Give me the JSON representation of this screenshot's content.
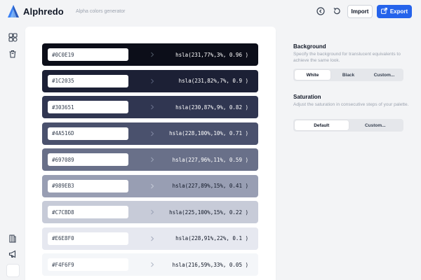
{
  "header": {
    "brand": "Alphredo",
    "tagline": "Alpha colors generator",
    "import_label": "Import",
    "export_label": "Export",
    "accent": "#2563eb"
  },
  "icons": {
    "logo": "alphredo-logo-icon",
    "history": "history-icon",
    "reset": "reset-icon",
    "export": "export-icon",
    "palettes": "palettes-icon",
    "trash": "trash-icon",
    "docs": "docs-icon",
    "announce": "megaphone-icon"
  },
  "swatches": [
    {
      "hex": "#0C0E19",
      "hsla": "hsla(231,77%,3%, 0.96 )",
      "bg": "#0C0E19",
      "text": "#ffffff",
      "chevron": "#4b5563"
    },
    {
      "hex": "#1C2035",
      "hsla": "hsla(231,82%,7%, 0.9 )",
      "bg": "#1C2035",
      "text": "#ffffff",
      "chevron": "#525a74"
    },
    {
      "hex": "#303651",
      "hsla": "hsla(230,87%,9%, 0.82 )",
      "bg": "#303651",
      "text": "#ffffff",
      "chevron": "#676e8a"
    },
    {
      "hex": "#4A516D",
      "hsla": "hsla(228,100%,10%, 0.71 )",
      "bg": "#4A516D",
      "text": "#ffffff",
      "chevron": "#7d84a0"
    },
    {
      "hex": "#697089",
      "hsla": "hsla(227,96%,11%, 0.59 )",
      "bg": "#697089",
      "text": "#ffffff",
      "chevron": "#99a0b6"
    },
    {
      "hex": "#989EB3",
      "hsla": "hsla(227,89%,15%, 0.41 )",
      "bg": "#989EB3",
      "text": "#111827",
      "chevron": "#c2c7d6"
    },
    {
      "hex": "#C7CBD8",
      "hsla": "hsla(225,100%,15%, 0.22 )",
      "bg": "#C7CBD8",
      "text": "#111827",
      "chevron": "#9ca3b8"
    },
    {
      "hex": "#E6E8F0",
      "hsla": "hsla(228,91%,22%, 0.1 )",
      "bg": "#E6E8F0",
      "text": "#111827",
      "chevron": "#a8aec0"
    },
    {
      "hex": "#F4F6F9",
      "hsla": "hsla(216,59%,33%, 0.05 )",
      "bg": "#F4F6F9",
      "text": "#111827",
      "chevron": "#b4bac8"
    }
  ],
  "background": {
    "title": "Background",
    "desc": "Specify the background for translucent equivalents to achieve the same look.",
    "options": [
      "White",
      "Black",
      "Custom..."
    ],
    "selected": "White"
  },
  "saturation": {
    "title": "Saturation",
    "desc": "Adjust the saturation in consecutive steps of your palette.",
    "options": [
      "Default",
      "Custom..."
    ],
    "selected": "Default"
  }
}
